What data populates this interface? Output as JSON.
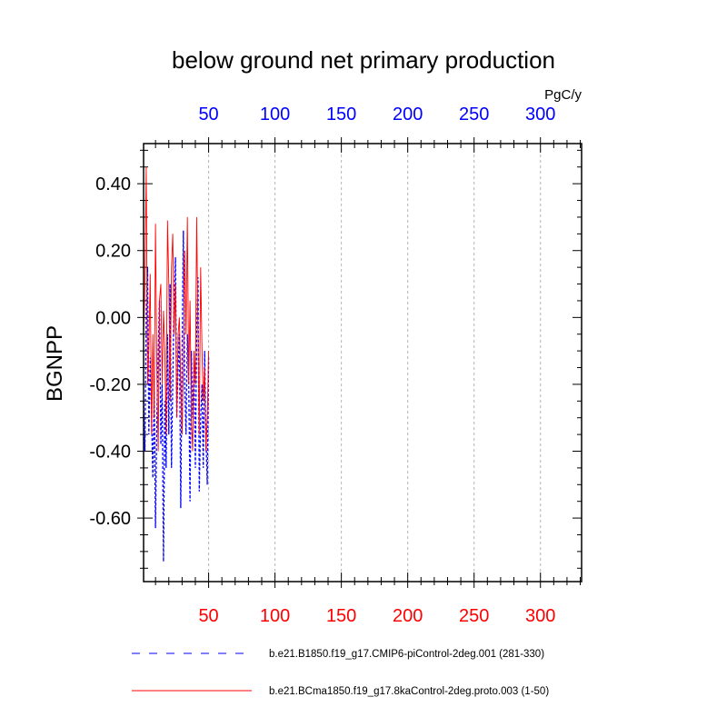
{
  "chart_data": {
    "type": "line",
    "title": "below ground net primary production",
    "ylabel": "BGNPP",
    "units": "PgC/y",
    "xlim": [
      1,
      331
    ],
    "ylim": [
      -0.79,
      0.52
    ],
    "x_ticks": [
      50,
      100,
      150,
      200,
      250,
      300
    ],
    "x_tick_labels": [
      "50",
      "100",
      "150",
      "200",
      "250",
      "300"
    ],
    "y_ticks": [
      0.4,
      0.2,
      0.0,
      -0.2,
      -0.4,
      -0.6
    ],
    "y_tick_labels": [
      "0.40",
      "0.20",
      "0.00",
      "-0.20",
      "-0.40",
      "-0.60"
    ],
    "top_axis_color": "#0000ff",
    "bottom_axis_color": "#ff0000",
    "grid": "vertical dashed",
    "series": [
      {
        "name": "b.e21.B1850.f19_g17.CMIP6-piControl-2deg.001 (281-330)",
        "color": "#0000ff",
        "style": "dashed",
        "x": [
          1,
          2,
          3,
          4,
          5,
          6,
          7,
          8,
          9,
          10,
          11,
          12,
          13,
          14,
          15,
          16,
          17,
          18,
          19,
          20,
          21,
          22,
          23,
          24,
          25,
          26,
          27,
          28,
          29,
          30,
          31,
          32,
          33,
          34,
          35,
          36,
          37,
          38,
          39,
          40,
          41,
          42,
          43,
          44,
          45,
          46,
          47,
          48,
          49,
          50
        ],
        "values": [
          -0.25,
          -0.4,
          0.02,
          0.15,
          -0.35,
          -0.12,
          -0.3,
          -0.48,
          -0.22,
          -0.63,
          -0.3,
          -0.1,
          0.05,
          -0.38,
          -0.2,
          -0.73,
          -0.25,
          -0.45,
          -0.05,
          -0.35,
          0.1,
          -0.45,
          -0.2,
          0.05,
          0.18,
          -0.3,
          -0.15,
          -0.05,
          -0.57,
          -0.1,
          0.26,
          -0.2,
          -0.35,
          -0.05,
          -0.2,
          -0.55,
          -0.1,
          -0.3,
          -0.15,
          -0.45,
          -0.05,
          0.12,
          -0.52,
          -0.3,
          -0.2,
          -0.45,
          -0.1,
          -0.35,
          -0.5,
          -0.12
        ]
      },
      {
        "name": "b.e21.BCma1850.f19_g17.8kaControl-2deg.proto.003 (1-50)",
        "color": "#ff0000",
        "style": "solid",
        "x": [
          1,
          2,
          3,
          4,
          5,
          6,
          7,
          8,
          9,
          10,
          11,
          12,
          13,
          14,
          15,
          16,
          17,
          18,
          19,
          20,
          21,
          22,
          23,
          24,
          25,
          26,
          27,
          28,
          29,
          30,
          31,
          32,
          33,
          34,
          35,
          36,
          37,
          38,
          39,
          40,
          41,
          42,
          43,
          44,
          45,
          46,
          47,
          48,
          49,
          50
        ],
        "values": [
          -0.05,
          0.1,
          0.45,
          -0.2,
          -0.1,
          0.13,
          -0.35,
          -0.05,
          -0.3,
          0.28,
          -0.15,
          -0.4,
          0.05,
          0.1,
          -0.2,
          0.02,
          -0.1,
          -0.35,
          0.29,
          0.1,
          -0.25,
          0.15,
          0.25,
          -0.05,
          0.1,
          -0.3,
          -0.05,
          0.0,
          -0.2,
          -0.35,
          -0.15,
          0.2,
          -0.05,
          0.3,
          -0.2,
          0.05,
          -0.3,
          -0.4,
          -0.1,
          -0.2,
          0.3,
          -0.05,
          -0.35,
          0.15,
          -0.1,
          -0.25,
          -0.15,
          -0.4,
          -0.3,
          -0.1
        ]
      }
    ]
  }
}
